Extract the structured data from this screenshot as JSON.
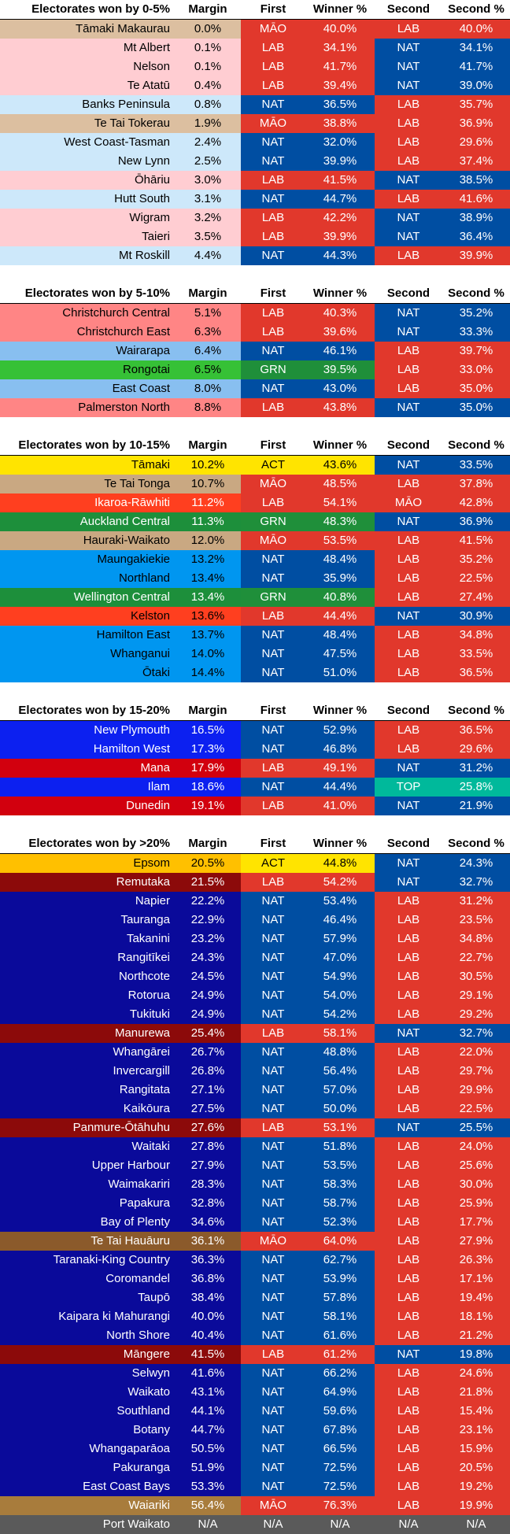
{
  "headers": {
    "margin": "Margin",
    "first": "First",
    "winner": "Winner %",
    "second": "Second",
    "second_pct": "Second %"
  },
  "party_colors": {
    "LAB": "#e1382c",
    "NAT": "#004ea2",
    "GRN": "#1f8f3a",
    "ACT": "#ffe400",
    "MĀO": "#e1382c",
    "TOP": "#00b99b",
    "N/A": "#5a5a5a"
  },
  "sections": [
    {
      "title": "Electorates won by 0-5%",
      "rows": [
        {
          "name": "Tāmaki Makaurau",
          "margin": "0.0%",
          "first": "MĀO",
          "winner": "40.0%",
          "second": "LAB",
          "second_pct": "40.0%",
          "bg": "#dcbfa0",
          "fg": "#000000"
        },
        {
          "name": "Mt Albert",
          "margin": "0.1%",
          "first": "LAB",
          "winner": "34.1%",
          "second": "NAT",
          "second_pct": "34.1%",
          "bg": "#ffcdd2",
          "fg": "#000000"
        },
        {
          "name": "Nelson",
          "margin": "0.1%",
          "first": "LAB",
          "winner": "41.7%",
          "second": "NAT",
          "second_pct": "41.7%",
          "bg": "#ffcdd2",
          "fg": "#000000"
        },
        {
          "name": "Te Atatū",
          "margin": "0.4%",
          "first": "LAB",
          "winner": "39.4%",
          "second": "NAT",
          "second_pct": "39.0%",
          "bg": "#ffcdd2",
          "fg": "#000000"
        },
        {
          "name": "Banks Peninsula",
          "margin": "0.8%",
          "first": "NAT",
          "winner": "36.5%",
          "second": "LAB",
          "second_pct": "35.7%",
          "bg": "#cde8fa",
          "fg": "#000000"
        },
        {
          "name": "Te Tai Tokerau",
          "margin": "1.9%",
          "first": "MĀO",
          "winner": "38.8%",
          "second": "LAB",
          "second_pct": "36.9%",
          "bg": "#dcbfa0",
          "fg": "#000000"
        },
        {
          "name": "West Coast-Tasman",
          "margin": "2.4%",
          "first": "NAT",
          "winner": "32.0%",
          "second": "LAB",
          "second_pct": "29.6%",
          "bg": "#cde8fa",
          "fg": "#000000"
        },
        {
          "name": "New Lynn",
          "margin": "2.5%",
          "first": "NAT",
          "winner": "39.9%",
          "second": "LAB",
          "second_pct": "37.4%",
          "bg": "#cde8fa",
          "fg": "#000000"
        },
        {
          "name": "Ōhāriu",
          "margin": "3.0%",
          "first": "LAB",
          "winner": "41.5%",
          "second": "NAT",
          "second_pct": "38.5%",
          "bg": "#ffcdd2",
          "fg": "#000000"
        },
        {
          "name": "Hutt South",
          "margin": "3.1%",
          "first": "NAT",
          "winner": "44.7%",
          "second": "LAB",
          "second_pct": "41.6%",
          "bg": "#cde8fa",
          "fg": "#000000"
        },
        {
          "name": "Wigram",
          "margin": "3.2%",
          "first": "LAB",
          "winner": "42.2%",
          "second": "NAT",
          "second_pct": "38.9%",
          "bg": "#ffcdd2",
          "fg": "#000000"
        },
        {
          "name": "Taieri",
          "margin": "3.5%",
          "first": "LAB",
          "winner": "39.9%",
          "second": "NAT",
          "second_pct": "36.4%",
          "bg": "#ffcdd2",
          "fg": "#000000"
        },
        {
          "name": "Mt Roskill",
          "margin": "4.4%",
          "first": "NAT",
          "winner": "44.3%",
          "second": "LAB",
          "second_pct": "39.9%",
          "bg": "#cde8fa",
          "fg": "#000000"
        }
      ]
    },
    {
      "title": "Electorates won by 5-10%",
      "rows": [
        {
          "name": "Christchurch Central",
          "margin": "5.1%",
          "first": "LAB",
          "winner": "40.3%",
          "second": "NAT",
          "second_pct": "35.2%",
          "bg": "#ff8585",
          "fg": "#000000"
        },
        {
          "name": "Christchurch East",
          "margin": "6.3%",
          "first": "LAB",
          "winner": "39.6%",
          "second": "NAT",
          "second_pct": "33.3%",
          "bg": "#ff8585",
          "fg": "#000000"
        },
        {
          "name": "Wairarapa",
          "margin": "6.4%",
          "first": "NAT",
          "winner": "46.1%",
          "second": "LAB",
          "second_pct": "39.7%",
          "bg": "#88bff0",
          "fg": "#000000"
        },
        {
          "name": "Rongotai",
          "margin": "6.5%",
          "first": "GRN",
          "winner": "39.5%",
          "second": "LAB",
          "second_pct": "33.0%",
          "bg": "#36c136",
          "fg": "#000000"
        },
        {
          "name": "East Coast",
          "margin": "8.0%",
          "first": "NAT",
          "winner": "43.0%",
          "second": "LAB",
          "second_pct": "35.0%",
          "bg": "#88bff0",
          "fg": "#000000"
        },
        {
          "name": "Palmerston North",
          "margin": "8.8%",
          "first": "LAB",
          "winner": "43.8%",
          "second": "NAT",
          "second_pct": "35.0%",
          "bg": "#ff8585",
          "fg": "#000000"
        }
      ]
    },
    {
      "title": "Electorates won by 10-15%",
      "rows": [
        {
          "name": "Tāmaki",
          "margin": "10.2%",
          "first": "ACT",
          "winner": "43.6%",
          "second": "NAT",
          "second_pct": "33.5%",
          "bg": "#ffe400",
          "fg": "#000000"
        },
        {
          "name": "Te Tai Tonga",
          "margin": "10.7%",
          "first": "MĀO",
          "winner": "48.5%",
          "second": "LAB",
          "second_pct": "37.8%",
          "bg": "#c9a882",
          "fg": "#000000"
        },
        {
          "name": "Ikaroa-Rāwhiti",
          "margin": "11.2%",
          "first": "LAB",
          "winner": "54.1%",
          "second": "MĀO",
          "second_pct": "42.8%",
          "bg": "#ff3f1f",
          "fg": "#ffffff"
        },
        {
          "name": "Auckland Central",
          "margin": "11.3%",
          "first": "GRN",
          "winner": "48.3%",
          "second": "NAT",
          "second_pct": "36.9%",
          "bg": "#1d8f3b",
          "fg": "#ffffff"
        },
        {
          "name": "Hauraki-Waikato",
          "margin": "12.0%",
          "first": "MĀO",
          "winner": "53.5%",
          "second": "LAB",
          "second_pct": "41.5%",
          "bg": "#c9a882",
          "fg": "#000000"
        },
        {
          "name": "Maungakiekie",
          "margin": "13.2%",
          "first": "NAT",
          "winner": "48.4%",
          "second": "LAB",
          "second_pct": "35.2%",
          "bg": "#0096f0",
          "fg": "#000000"
        },
        {
          "name": "Northland",
          "margin": "13.4%",
          "first": "NAT",
          "winner": "35.9%",
          "second": "LAB",
          "second_pct": "22.5%",
          "bg": "#0096f0",
          "fg": "#000000"
        },
        {
          "name": "Wellington Central",
          "margin": "13.4%",
          "first": "GRN",
          "winner": "40.8%",
          "second": "LAB",
          "second_pct": "27.4%",
          "bg": "#1d8f3b",
          "fg": "#ffffff"
        },
        {
          "name": "Kelston",
          "margin": "13.6%",
          "first": "LAB",
          "winner": "44.4%",
          "second": "NAT",
          "second_pct": "30.9%",
          "bg": "#ff3f1f",
          "fg": "#000000"
        },
        {
          "name": "Hamilton East",
          "margin": "13.7%",
          "first": "NAT",
          "winner": "48.4%",
          "second": "LAB",
          "second_pct": "34.8%",
          "bg": "#0096f0",
          "fg": "#000000"
        },
        {
          "name": "Whanganui",
          "margin": "14.0%",
          "first": "NAT",
          "winner": "47.5%",
          "second": "LAB",
          "second_pct": "33.5%",
          "bg": "#0096f0",
          "fg": "#000000"
        },
        {
          "name": "Ōtaki",
          "margin": "14.4%",
          "first": "NAT",
          "winner": "51.0%",
          "second": "LAB",
          "second_pct": "36.5%",
          "bg": "#0096f0",
          "fg": "#000000"
        }
      ]
    },
    {
      "title": "Electorates won by 15-20%",
      "rows": [
        {
          "name": "New Plymouth",
          "margin": "16.5%",
          "first": "NAT",
          "winner": "52.9%",
          "second": "LAB",
          "second_pct": "36.5%",
          "bg": "#0c20f0",
          "fg": "#ffffff"
        },
        {
          "name": "Hamilton West",
          "margin": "17.3%",
          "first": "NAT",
          "winner": "46.8%",
          "second": "LAB",
          "second_pct": "29.6%",
          "bg": "#0c20f0",
          "fg": "#ffffff"
        },
        {
          "name": "Mana",
          "margin": "17.9%",
          "first": "LAB",
          "winner": "49.1%",
          "second": "NAT",
          "second_pct": "31.2%",
          "bg": "#d2000e",
          "fg": "#ffffff"
        },
        {
          "name": "Ilam",
          "margin": "18.6%",
          "first": "NAT",
          "winner": "44.4%",
          "second": "TOP",
          "second_pct": "25.8%",
          "bg": "#0c20f0",
          "fg": "#ffffff"
        },
        {
          "name": "Dunedin",
          "margin": "19.1%",
          "first": "LAB",
          "winner": "41.0%",
          "second": "NAT",
          "second_pct": "21.9%",
          "bg": "#d2000e",
          "fg": "#ffffff"
        }
      ]
    },
    {
      "title": "Electorates won by >20%",
      "rows": [
        {
          "name": "Epsom",
          "margin": "20.5%",
          "first": "ACT",
          "winner": "44.8%",
          "second": "NAT",
          "second_pct": "24.3%",
          "bg": "#ffc000",
          "fg": "#000000"
        },
        {
          "name": "Remutaka",
          "margin": "21.5%",
          "first": "LAB",
          "winner": "54.2%",
          "second": "NAT",
          "second_pct": "32.7%",
          "bg": "#8c0a0a",
          "fg": "#ffffff"
        },
        {
          "name": "Napier",
          "margin": "22.2%",
          "first": "NAT",
          "winner": "53.4%",
          "second": "LAB",
          "second_pct": "31.2%",
          "bg": "#0a0a9a",
          "fg": "#ffffff"
        },
        {
          "name": "Tauranga",
          "margin": "22.9%",
          "first": "NAT",
          "winner": "46.4%",
          "second": "LAB",
          "second_pct": "23.5%",
          "bg": "#0a0a9a",
          "fg": "#ffffff"
        },
        {
          "name": "Takanini",
          "margin": "23.2%",
          "first": "NAT",
          "winner": "57.9%",
          "second": "LAB",
          "second_pct": "34.8%",
          "bg": "#0a0a9a",
          "fg": "#ffffff"
        },
        {
          "name": "Rangitīkei",
          "margin": "24.3%",
          "first": "NAT",
          "winner": "47.0%",
          "second": "LAB",
          "second_pct": "22.7%",
          "bg": "#0a0a9a",
          "fg": "#ffffff"
        },
        {
          "name": "Northcote",
          "margin": "24.5%",
          "first": "NAT",
          "winner": "54.9%",
          "second": "LAB",
          "second_pct": "30.5%",
          "bg": "#0a0a9a",
          "fg": "#ffffff"
        },
        {
          "name": "Rotorua",
          "margin": "24.9%",
          "first": "NAT",
          "winner": "54.0%",
          "second": "LAB",
          "second_pct": "29.1%",
          "bg": "#0a0a9a",
          "fg": "#ffffff"
        },
        {
          "name": "Tukituki",
          "margin": "24.9%",
          "first": "NAT",
          "winner": "54.2%",
          "second": "LAB",
          "second_pct": "29.2%",
          "bg": "#0a0a9a",
          "fg": "#ffffff"
        },
        {
          "name": "Manurewa",
          "margin": "25.4%",
          "first": "LAB",
          "winner": "58.1%",
          "second": "NAT",
          "second_pct": "32.7%",
          "bg": "#8c0a0a",
          "fg": "#ffffff"
        },
        {
          "name": "Whangārei",
          "margin": "26.7%",
          "first": "NAT",
          "winner": "48.8%",
          "second": "LAB",
          "second_pct": "22.0%",
          "bg": "#0a0a9a",
          "fg": "#ffffff"
        },
        {
          "name": "Invercargill",
          "margin": "26.8%",
          "first": "NAT",
          "winner": "56.4%",
          "second": "LAB",
          "second_pct": "29.7%",
          "bg": "#0a0a9a",
          "fg": "#ffffff"
        },
        {
          "name": "Rangitata",
          "margin": "27.1%",
          "first": "NAT",
          "winner": "57.0%",
          "second": "LAB",
          "second_pct": "29.9%",
          "bg": "#0a0a9a",
          "fg": "#ffffff"
        },
        {
          "name": "Kaikōura",
          "margin": "27.5%",
          "first": "NAT",
          "winner": "50.0%",
          "second": "LAB",
          "second_pct": "22.5%",
          "bg": "#0a0a9a",
          "fg": "#ffffff"
        },
        {
          "name": "Panmure-Ōtāhuhu",
          "margin": "27.6%",
          "first": "LAB",
          "winner": "53.1%",
          "second": "NAT",
          "second_pct": "25.5%",
          "bg": "#8c0a0a",
          "fg": "#ffffff"
        },
        {
          "name": "Waitaki",
          "margin": "27.8%",
          "first": "NAT",
          "winner": "51.8%",
          "second": "LAB",
          "second_pct": "24.0%",
          "bg": "#0a0a9a",
          "fg": "#ffffff"
        },
        {
          "name": "Upper Harbour",
          "margin": "27.9%",
          "first": "NAT",
          "winner": "53.5%",
          "second": "LAB",
          "second_pct": "25.6%",
          "bg": "#0a0a9a",
          "fg": "#ffffff"
        },
        {
          "name": "Waimakariri",
          "margin": "28.3%",
          "first": "NAT",
          "winner": "58.3%",
          "second": "LAB",
          "second_pct": "30.0%",
          "bg": "#0a0a9a",
          "fg": "#ffffff"
        },
        {
          "name": "Papakura",
          "margin": "32.8%",
          "first": "NAT",
          "winner": "58.7%",
          "second": "LAB",
          "second_pct": "25.9%",
          "bg": "#0a0a9a",
          "fg": "#ffffff"
        },
        {
          "name": "Bay of Plenty",
          "margin": "34.6%",
          "first": "NAT",
          "winner": "52.3%",
          "second": "LAB",
          "second_pct": "17.7%",
          "bg": "#0a0a9a",
          "fg": "#ffffff"
        },
        {
          "name": "Te Tai Hauāuru",
          "margin": "36.1%",
          "first": "MĀO",
          "winner": "64.0%",
          "second": "LAB",
          "second_pct": "27.9%",
          "bg": "#8b5a2b",
          "fg": "#ffffff"
        },
        {
          "name": "Taranaki-King Country",
          "margin": "36.3%",
          "first": "NAT",
          "winner": "62.7%",
          "second": "LAB",
          "second_pct": "26.3%",
          "bg": "#0a0a9a",
          "fg": "#ffffff"
        },
        {
          "name": "Coromandel",
          "margin": "36.8%",
          "first": "NAT",
          "winner": "53.9%",
          "second": "LAB",
          "second_pct": "17.1%",
          "bg": "#0a0a9a",
          "fg": "#ffffff"
        },
        {
          "name": "Taupō",
          "margin": "38.4%",
          "first": "NAT",
          "winner": "57.8%",
          "second": "LAB",
          "second_pct": "19.4%",
          "bg": "#0a0a9a",
          "fg": "#ffffff"
        },
        {
          "name": "Kaipara ki Mahurangi",
          "margin": "40.0%",
          "first": "NAT",
          "winner": "58.1%",
          "second": "LAB",
          "second_pct": "18.1%",
          "bg": "#0a0a9a",
          "fg": "#ffffff"
        },
        {
          "name": "North Shore",
          "margin": "40.4%",
          "first": "NAT",
          "winner": "61.6%",
          "second": "LAB",
          "second_pct": "21.2%",
          "bg": "#0a0a9a",
          "fg": "#ffffff"
        },
        {
          "name": "Māngere",
          "margin": "41.5%",
          "first": "LAB",
          "winner": "61.2%",
          "second": "NAT",
          "second_pct": "19.8%",
          "bg": "#8c0a0a",
          "fg": "#ffffff"
        },
        {
          "name": "Selwyn",
          "margin": "41.6%",
          "first": "NAT",
          "winner": "66.2%",
          "second": "LAB",
          "second_pct": "24.6%",
          "bg": "#0a0a9a",
          "fg": "#ffffff"
        },
        {
          "name": "Waikato",
          "margin": "43.1%",
          "first": "NAT",
          "winner": "64.9%",
          "second": "LAB",
          "second_pct": "21.8%",
          "bg": "#0a0a9a",
          "fg": "#ffffff"
        },
        {
          "name": "Southland",
          "margin": "44.1%",
          "first": "NAT",
          "winner": "59.6%",
          "second": "LAB",
          "second_pct": "15.4%",
          "bg": "#0a0a9a",
          "fg": "#ffffff"
        },
        {
          "name": "Botany",
          "margin": "44.7%",
          "first": "NAT",
          "winner": "67.8%",
          "second": "LAB",
          "second_pct": "23.1%",
          "bg": "#0a0a9a",
          "fg": "#ffffff"
        },
        {
          "name": "Whangaparāoa",
          "margin": "50.5%",
          "first": "NAT",
          "winner": "66.5%",
          "second": "LAB",
          "second_pct": "15.9%",
          "bg": "#0a0a9a",
          "fg": "#ffffff"
        },
        {
          "name": "Pakuranga",
          "margin": "51.9%",
          "first": "NAT",
          "winner": "72.5%",
          "second": "LAB",
          "second_pct": "20.5%",
          "bg": "#0a0a9a",
          "fg": "#ffffff"
        },
        {
          "name": "East Coast Bays",
          "margin": "53.3%",
          "first": "NAT",
          "winner": "72.5%",
          "second": "LAB",
          "second_pct": "19.2%",
          "bg": "#0a0a9a",
          "fg": "#ffffff"
        },
        {
          "name": "Waiariki",
          "margin": "56.4%",
          "first": "MĀO",
          "winner": "76.3%",
          "second": "LAB",
          "second_pct": "19.9%",
          "bg": "#a87c3c",
          "fg": "#ffffff"
        },
        {
          "name": "Port Waikato",
          "margin": "N/A",
          "first": "N/A",
          "winner": "N/A",
          "second": "N/A",
          "second_pct": "N/A",
          "bg": "#5a5a5a",
          "fg": "#ffffff"
        }
      ]
    }
  ]
}
